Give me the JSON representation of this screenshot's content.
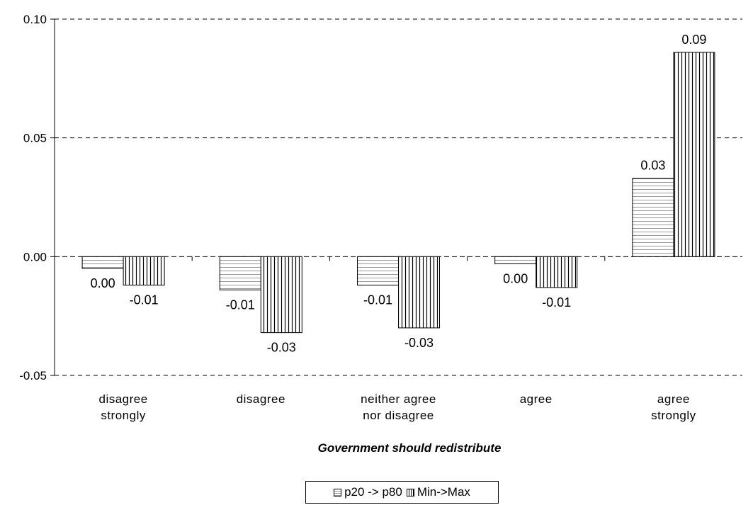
{
  "chart_data": {
    "type": "bar",
    "categories": [
      [
        "disagree",
        "strongly"
      ],
      [
        "disagree"
      ],
      [
        "neither agree",
        "nor disagree"
      ],
      [
        "agree"
      ],
      [
        "agree",
        "strongly"
      ]
    ],
    "series": [
      {
        "name": "p20 -> p80",
        "values": [
          -0.005,
          -0.014,
          -0.012,
          -0.003,
          0.033
        ],
        "labels": [
          "0.00",
          "-0.01",
          "-0.01",
          "0.00",
          "0.03"
        ],
        "pattern": "horizontal"
      },
      {
        "name": "Min->Max",
        "values": [
          -0.012,
          -0.032,
          -0.03,
          -0.013,
          0.086
        ],
        "labels": [
          "-0.01",
          "-0.03",
          "-0.03",
          "-0.01",
          "0.09"
        ],
        "pattern": "vertical"
      }
    ],
    "xlabel": "Government should redistribute",
    "ylabel": "",
    "ylim": [
      -0.05,
      0.1
    ],
    "yticks": [
      "-0.05",
      "0.00",
      "0.05",
      "0.10"
    ],
    "grid": "dashed-horizontal",
    "legend_position": "bottom",
    "colors": {
      "bar_fill": "#ffffff",
      "bar_stroke": "#000000",
      "hatch_horizontal": "#999999",
      "hatch_vertical": "#000000",
      "grid": "#000000"
    }
  },
  "legend": {
    "series_0": "p20 -> p80",
    "series_1": "Min->Max"
  }
}
